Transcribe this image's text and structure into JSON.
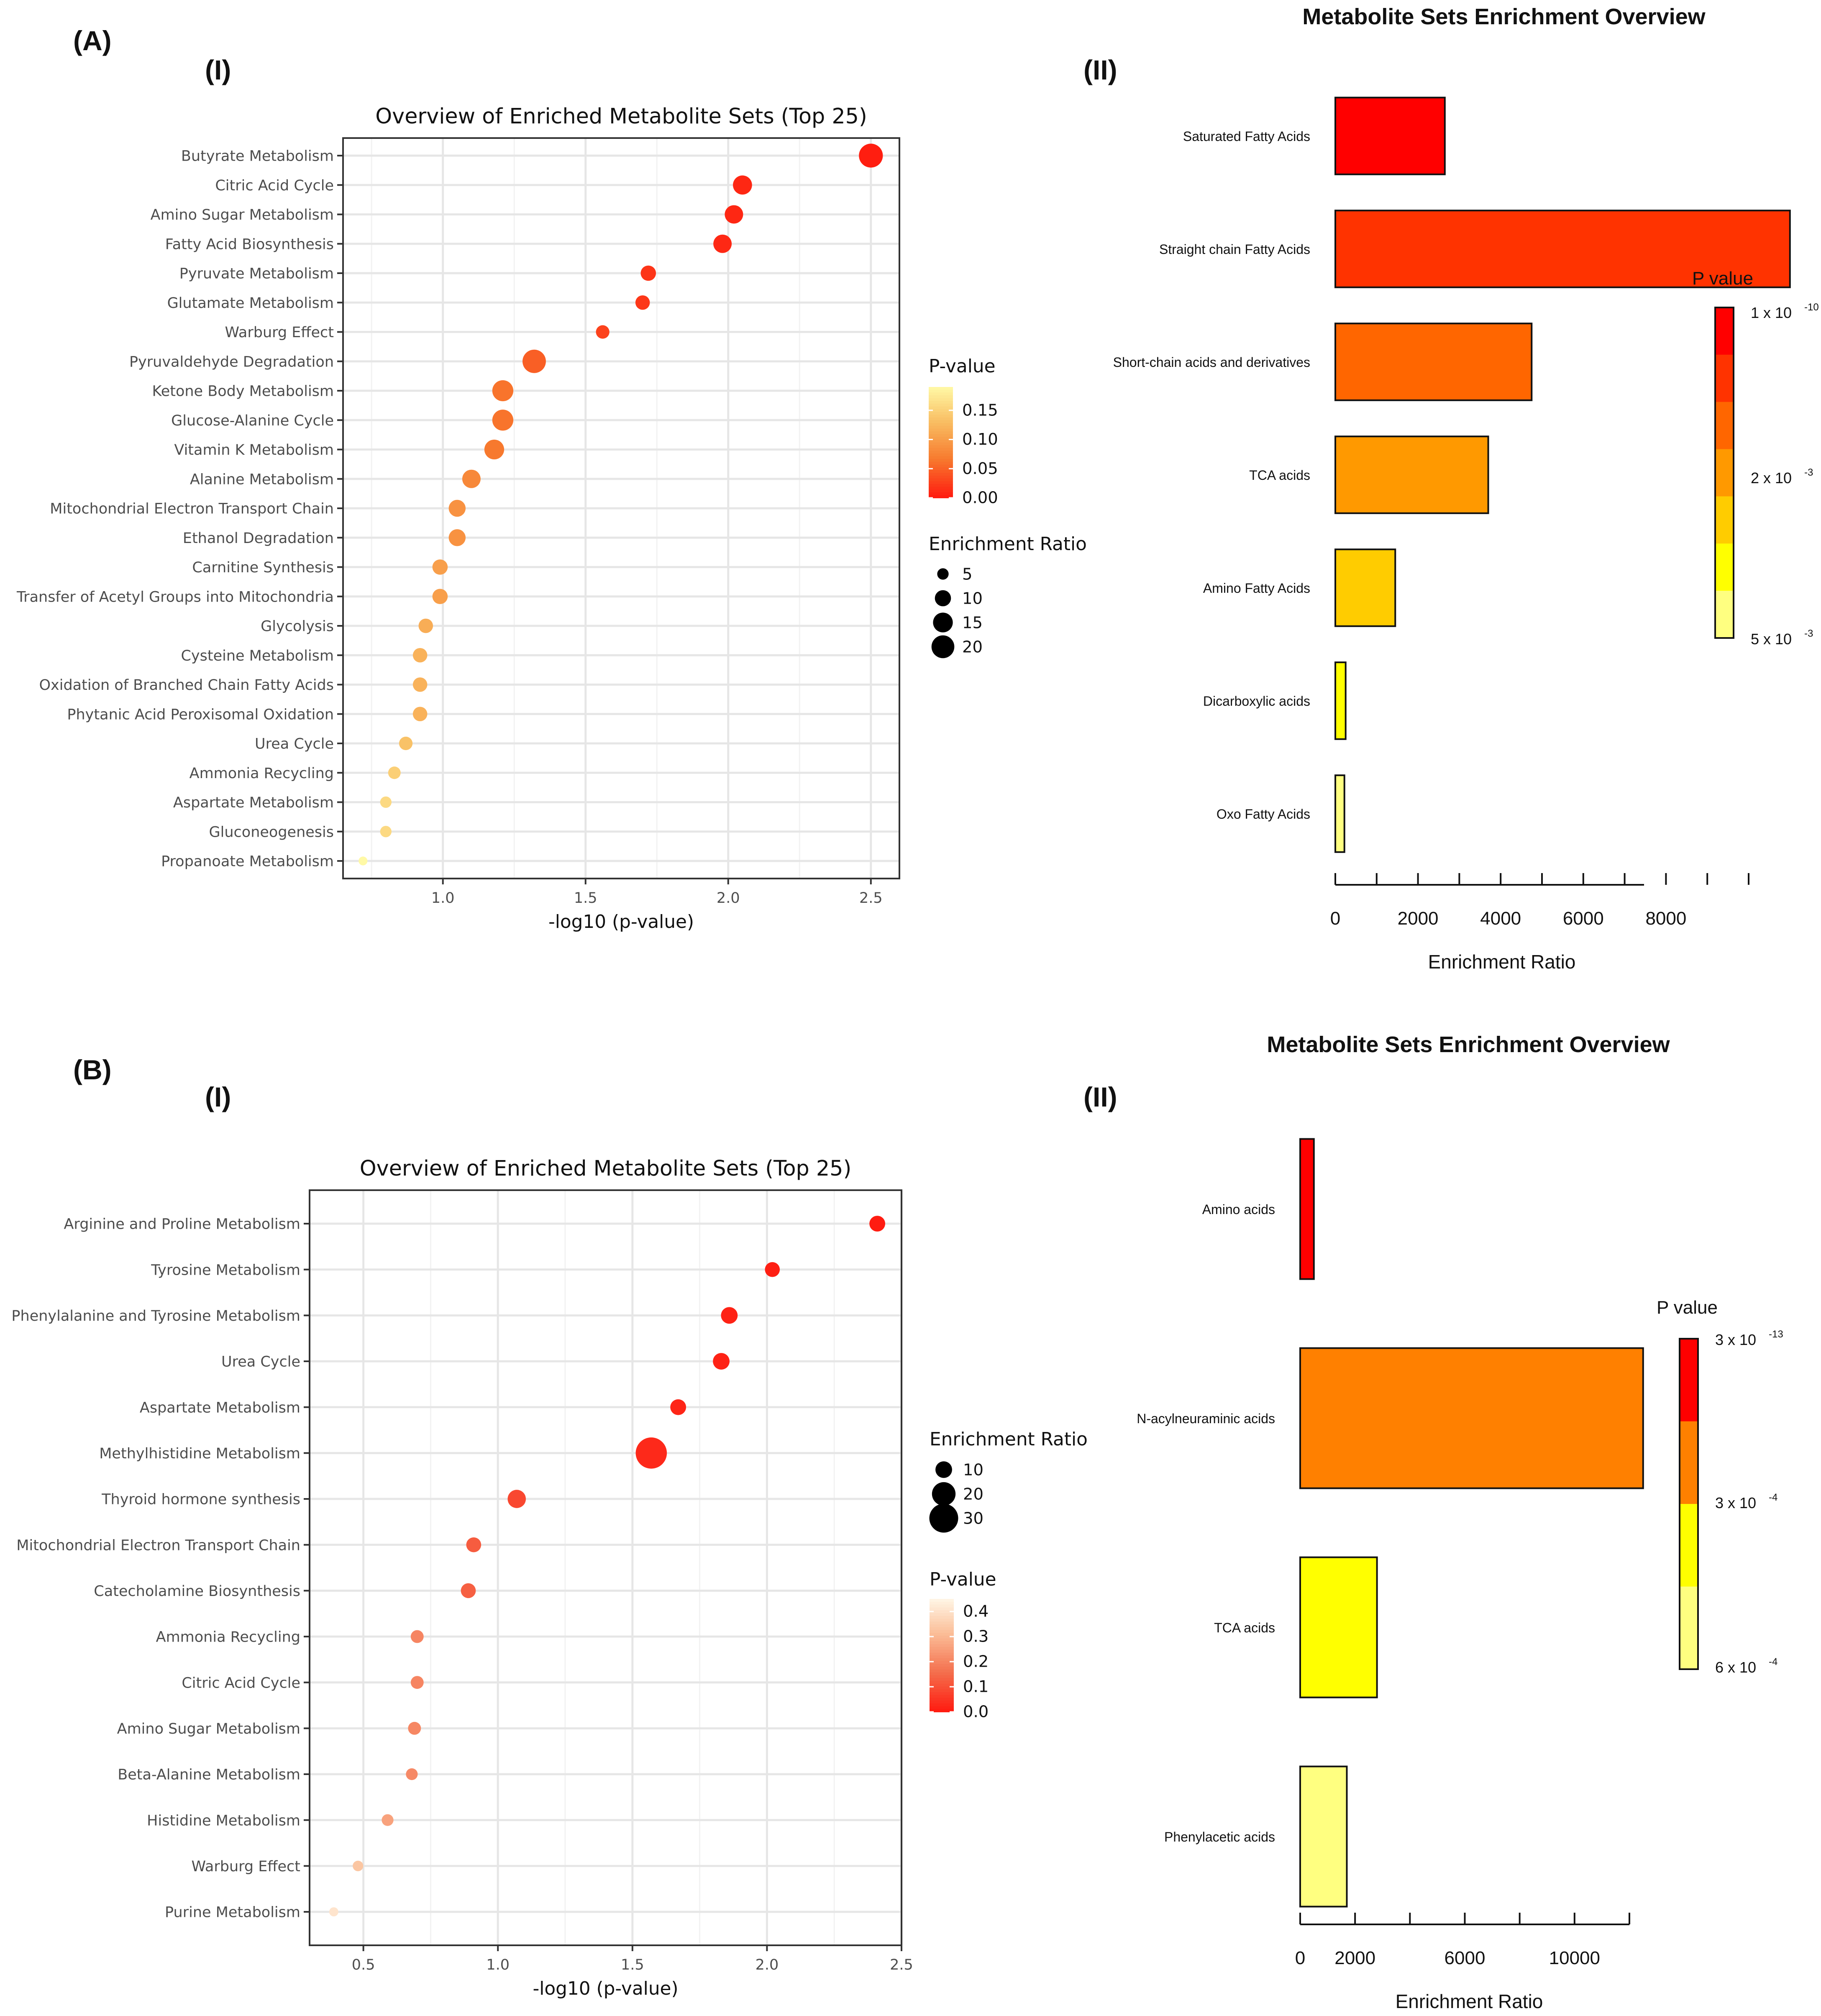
{
  "figure": {
    "panel_A_label": "(A)",
    "panel_B_label": "(B)",
    "sub_I": "(I)",
    "sub_II": "(II)"
  },
  "chart_data": [
    {
      "id": "A1",
      "type": "scatter",
      "title": "Overview of Enriched Metabolite Sets (Top 25)",
      "xlabel": "-log10 (p-value)",
      "ylabel": "",
      "xlim": [
        0.65,
        2.6
      ],
      "xticks": [
        1.0,
        1.5,
        2.0,
        2.5
      ],
      "xtick_labels": [
        "1.0",
        "1.5",
        "2.0",
        "2.5"
      ],
      "categories": [
        "Butyrate Metabolism",
        "Citric Acid Cycle",
        "Amino Sugar Metabolism",
        "Fatty Acid Biosynthesis",
        "Pyruvate Metabolism",
        "Glutamate Metabolism",
        "Warburg Effect",
        "Pyruvaldehyde Degradation",
        "Ketone Body Metabolism",
        "Glucose-Alanine Cycle",
        "Vitamin K Metabolism",
        "Alanine Metabolism",
        "Mitochondrial Electron Transport Chain",
        "Ethanol Degradation",
        "Carnitine Synthesis",
        "Transfer of Acetyl Groups into Mitochondria",
        "Glycolysis",
        "Cysteine Metabolism",
        "Oxidation of Branched Chain Fatty Acids",
        "Phytanic Acid Peroxisomal Oxidation",
        "Urea Cycle",
        "Ammonia Recycling",
        "Aspartate Metabolism",
        "Gluconeogenesis",
        "Propanoate Metabolism"
      ],
      "x": [
        2.5,
        2.05,
        2.02,
        1.98,
        1.72,
        1.7,
        1.56,
        1.32,
        1.21,
        1.21,
        1.18,
        1.1,
        1.05,
        1.05,
        0.99,
        0.99,
        0.94,
        0.92,
        0.92,
        0.92,
        0.87,
        0.83,
        0.8,
        0.8,
        0.72
      ],
      "p_value": [
        0.003,
        0.009,
        0.009,
        0.01,
        0.019,
        0.02,
        0.028,
        0.048,
        0.062,
        0.062,
        0.066,
        0.08,
        0.089,
        0.089,
        0.102,
        0.102,
        0.115,
        0.12,
        0.12,
        0.12,
        0.135,
        0.148,
        0.158,
        0.158,
        0.19
      ],
      "enrichment_ratio": [
        22,
        14,
        13,
        13,
        9,
        8,
        7,
        21,
        17,
        17,
        15,
        13,
        11,
        11,
        9,
        9,
        8,
        8,
        8,
        8,
        7,
        6,
        5,
        5,
        3
      ],
      "legend_color_title": "P-value",
      "legend_color_ticks": [
        "0.15",
        "0.10",
        "0.05",
        "0.00"
      ],
      "legend_size_title": "Enrichment Ratio",
      "legend_size_values": [
        "5",
        "10",
        "15",
        "20"
      ]
    },
    {
      "id": "A2",
      "type": "bar",
      "title": "Metabolite Sets Enrichment Overview",
      "xlabel": "Enrichment Ratio",
      "xlim": [
        0,
        10000
      ],
      "xticks": [
        0,
        2000,
        4000,
        6000,
        8000
      ],
      "categories": [
        "Saturated Fatty Acids",
        "Straight chain Fatty Acids",
        "Short-chain acids and derivatives",
        "TCA acids",
        "Amino Fatty Acids",
        "Dicarboxylic acids",
        "Oxo Fatty Acids"
      ],
      "values": [
        2650,
        11000,
        4750,
        3700,
        1450,
        250,
        220
      ],
      "colors": [
        "#ff0000",
        "#ff3300",
        "#ff6600",
        "#ff9900",
        "#ffcc00",
        "#ffff00",
        "#ffff80"
      ],
      "legend_title": "P value",
      "legend_colors": [
        "#ff0000",
        "#ff3300",
        "#ff6600",
        "#ff9900",
        "#ffcc00",
        "#ffff00",
        "#ffff80"
      ],
      "legend_labels": [
        {
          "base": "1 x 10",
          "exp": "-10"
        },
        {
          "base": "2 x 10",
          "exp": "-3"
        },
        {
          "base": "5 x 10",
          "exp": "-3"
        }
      ]
    },
    {
      "id": "B1",
      "type": "scatter",
      "title": "Overview of Enriched Metabolite Sets (Top 25)",
      "xlabel": "-log10 (p-value)",
      "ylabel": "",
      "xlim": [
        0.3,
        2.5
      ],
      "xticks": [
        0.5,
        1.0,
        1.5,
        2.0,
        2.5
      ],
      "xtick_labels": [
        "0.5",
        "1.0",
        "1.5",
        "2.0",
        "2.5"
      ],
      "categories": [
        "Arginine and Proline Metabolism",
        "Tyrosine Metabolism",
        "Phenylalanine and Tyrosine Metabolism",
        "Urea Cycle",
        "Aspartate Metabolism",
        "Methylhistidine Metabolism",
        "Thyroid hormone synthesis",
        "Mitochondrial Electron Transport Chain",
        "Catecholamine Biosynthesis",
        "Ammonia Recycling",
        "Citric Acid Cycle",
        "Amino Sugar Metabolism",
        "Beta-Alanine Metabolism",
        "Histidine Metabolism",
        "Warburg Effect",
        "Purine Metabolism"
      ],
      "x": [
        2.41,
        2.02,
        1.86,
        1.83,
        1.67,
        1.57,
        1.07,
        0.91,
        0.89,
        0.7,
        0.7,
        0.69,
        0.68,
        0.59,
        0.48,
        0.39
      ],
      "p_value": [
        0.004,
        0.009,
        0.014,
        0.015,
        0.021,
        0.027,
        0.085,
        0.123,
        0.129,
        0.2,
        0.2,
        0.204,
        0.209,
        0.257,
        0.331,
        0.407
      ],
      "enrichment_ratio": [
        9,
        8,
        10,
        10,
        9,
        35,
        12,
        8,
        8,
        6,
        6,
        6,
        5,
        5,
        4,
        3
      ],
      "legend_color_title": "P-value",
      "legend_color_ticks": [
        "0.4",
        "0.3",
        "0.2",
        "0.1",
        "0.0"
      ],
      "legend_size_title": "Enrichment Ratio",
      "legend_size_values": [
        "10",
        "20",
        "30"
      ]
    },
    {
      "id": "B2",
      "type": "bar",
      "title": "Metabolite Sets Enrichment Overview",
      "xlabel": "Enrichment Ratio",
      "xlim": [
        0,
        12000
      ],
      "xticks": [
        0,
        2000,
        6000,
        10000
      ],
      "categories": [
        "Amino acids",
        "N-acylneuraminic acids",
        "TCA acids",
        "Phenylacetic acids"
      ],
      "values": [
        500,
        12500,
        2800,
        1700
      ],
      "colors": [
        "#ff0000",
        "#ff8000",
        "#ffff00",
        "#ffff80"
      ],
      "legend_title": "P value",
      "legend_colors": [
        "#ff0000",
        "#ff8000",
        "#ffff00",
        "#ffff80"
      ],
      "legend_labels": [
        {
          "base": "3 x 10",
          "exp": "-13"
        },
        {
          "base": "3 x 10",
          "exp": "-4"
        },
        {
          "base": "6 x 10",
          "exp": "-4"
        }
      ]
    }
  ]
}
